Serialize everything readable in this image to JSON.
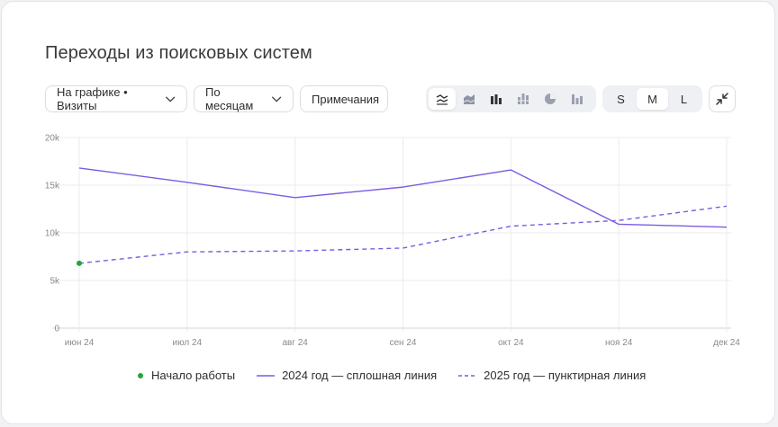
{
  "title": "Переходы из поисковых систем",
  "controls": {
    "metric_label": "На графике • Визиты",
    "period_label": "По месяцам",
    "notes_label": "Примечания",
    "chart_types": [
      "line-chart-icon",
      "area-chart-icon",
      "bar-chart-icon",
      "stacked-bar-icon",
      "pie-chart-icon",
      "column-chart-icon"
    ],
    "active_chart_type": 0,
    "sizes": [
      "S",
      "M",
      "L"
    ],
    "active_size": 1
  },
  "colors": {
    "line": "#7c5ce0",
    "start_dot": "#1fa83a",
    "grid": "#ebebef"
  },
  "chart_data": {
    "type": "line",
    "categories": [
      "июн 24",
      "июл 24",
      "авг 24",
      "сен 24",
      "окт 24",
      "ноя 24",
      "дек 24"
    ],
    "ylim": [
      0,
      20000
    ],
    "y_ticks": [
      0,
      5000,
      10000,
      15000,
      20000
    ],
    "y_tick_labels": [
      "0",
      "5k",
      "10k",
      "15k",
      "20k"
    ],
    "series": [
      {
        "name": "2024 год — сплошная линия",
        "style": "solid",
        "values": [
          16800,
          15300,
          13700,
          14800,
          16600,
          10900,
          10600
        ]
      },
      {
        "name": "2025 год — пунктирная линия",
        "style": "dashed",
        "values": [
          6800,
          8000,
          8100,
          8400,
          10700,
          11300,
          12800
        ]
      }
    ],
    "start_marker": {
      "label": "Начало работы",
      "category_index": 0,
      "value": 6800
    },
    "grid": true,
    "legend": "bottom"
  }
}
